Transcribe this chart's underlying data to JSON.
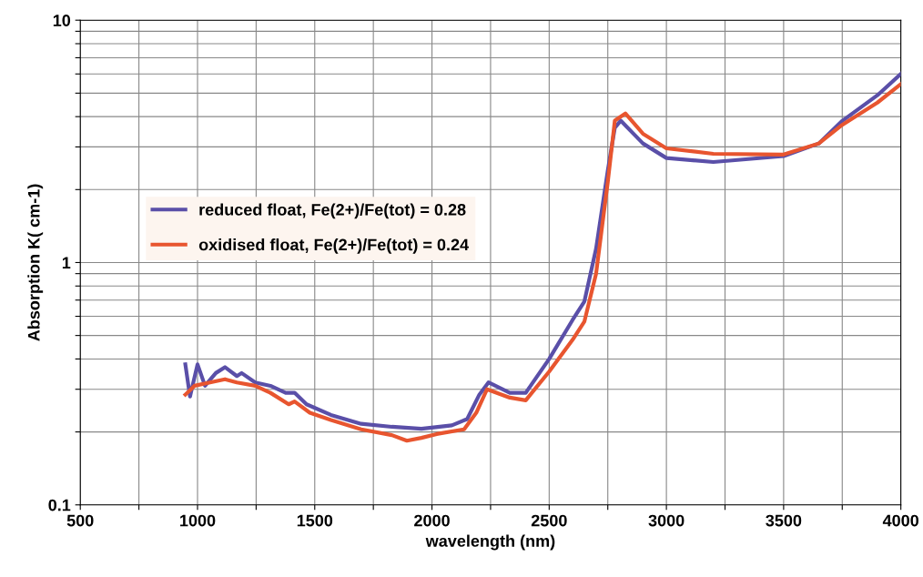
{
  "chart_data": {
    "type": "line",
    "xlabel": "wavelength (nm)",
    "ylabel": "Absorption K( cm-1)",
    "log": "y",
    "grid": true,
    "legend": "left",
    "line_style": "solid",
    "marker": "none",
    "xlim": [
      500,
      4000
    ],
    "ylim": [
      0.1,
      10
    ],
    "xticks": [
      500,
      {
        "value": 750,
        "label": null
      },
      1000,
      {
        "value": 1250,
        "label": null
      },
      1500,
      {
        "value": 1750,
        "label": null
      },
      2000,
      {
        "value": 2250,
        "label": null
      },
      2500,
      {
        "value": 2750,
        "label": null
      },
      3000,
      {
        "value": 3250,
        "label": null
      },
      3500,
      {
        "value": 3750,
        "label": null
      },
      4000
    ],
    "yticks": [
      0.1,
      {
        "value": 0.2,
        "label": null
      },
      {
        "value": 0.3,
        "label": null
      },
      {
        "value": 0.4,
        "label": null
      },
      {
        "value": 0.5,
        "label": null
      },
      {
        "value": 0.6,
        "label": null
      },
      {
        "value": 0.7,
        "label": null
      },
      {
        "value": 0.8,
        "label": null
      },
      {
        "value": 0.9,
        "label": null
      },
      1,
      {
        "value": 2,
        "label": null
      },
      {
        "value": 3,
        "label": null
      },
      {
        "value": 4,
        "label": null
      },
      {
        "value": 5,
        "label": null
      },
      {
        "value": 6,
        "label": null
      },
      {
        "value": 7,
        "label": null
      },
      {
        "value": 8,
        "label": null
      },
      {
        "value": 9,
        "label": null
      },
      10
    ],
    "series": [
      {
        "name": "reduced float, Fe(2+)/Fe(tot) = 0.28",
        "color": "#5a4fa8",
        "x": [
          948,
          968,
          1000,
          1032,
          1078,
          1117,
          1168,
          1188,
          1246,
          1311,
          1376,
          1414,
          1465,
          1569,
          1698,
          1829,
          1955,
          2085,
          2150,
          2202,
          2241,
          2332,
          2400,
          2500,
          2600,
          2650,
          2700,
          2750,
          2780,
          2805,
          2900,
          3000,
          3200,
          3500,
          3650,
          3750,
          3900,
          4000
        ],
        "values": [
          0.38,
          0.28,
          0.38,
          0.31,
          0.35,
          0.37,
          0.34,
          0.35,
          0.32,
          0.31,
          0.29,
          0.29,
          0.26,
          0.235,
          0.216,
          0.21,
          0.206,
          0.213,
          0.226,
          0.285,
          0.32,
          0.29,
          0.29,
          0.4,
          0.58,
          0.69,
          1.14,
          2.4,
          3.6,
          3.85,
          3.1,
          2.7,
          2.6,
          2.75,
          3.1,
          3.84,
          4.9,
          6.0
        ]
      },
      {
        "name": "oxidised float, Fe(2+)/Fe(tot) = 0.24",
        "color": "#e8552f",
        "x": [
          948,
          987,
          1053,
          1117,
          1168,
          1246,
          1311,
          1389,
          1414,
          1479,
          1569,
          1698,
          1829,
          1893,
          1955,
          2020,
          2137,
          2189,
          2235,
          2332,
          2400,
          2500,
          2600,
          2650,
          2700,
          2750,
          2780,
          2825,
          2900,
          3000,
          3200,
          3500,
          3650,
          3750,
          3900,
          4000
        ],
        "values": [
          0.285,
          0.31,
          0.32,
          0.33,
          0.32,
          0.31,
          0.29,
          0.26,
          0.267,
          0.24,
          0.224,
          0.205,
          0.194,
          0.184,
          0.189,
          0.196,
          0.205,
          0.24,
          0.3,
          0.277,
          0.27,
          0.355,
          0.48,
          0.57,
          0.9,
          2.15,
          3.85,
          4.12,
          3.4,
          2.96,
          2.81,
          2.79,
          3.1,
          3.7,
          4.57,
          5.45
        ]
      }
    ]
  }
}
